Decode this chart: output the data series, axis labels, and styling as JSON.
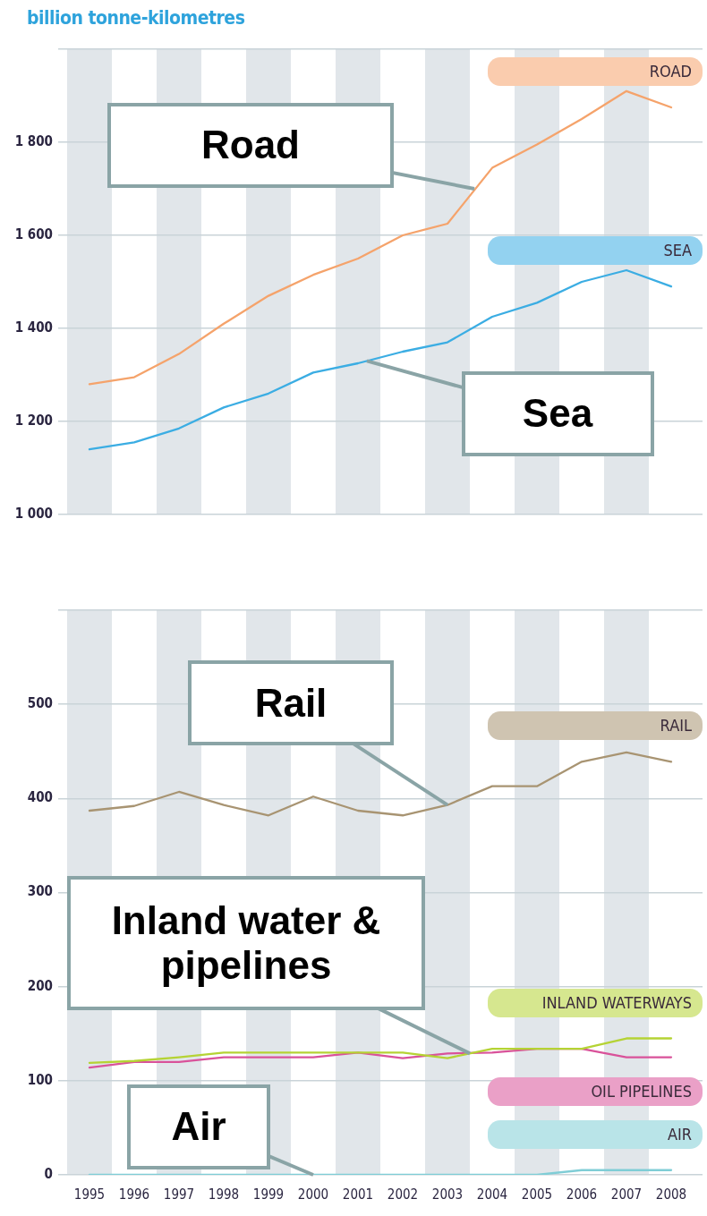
{
  "chart_data": [
    {
      "type": "line",
      "ylabel": "billion tonne-kilometres",
      "x": [
        1995,
        1996,
        1997,
        1998,
        1999,
        2000,
        2001,
        2002,
        2003,
        2004,
        2005,
        2006,
        2007,
        2008
      ],
      "series": [
        {
          "name": "ROAD",
          "color": "#f5a36b",
          "values": [
            1280,
            1295,
            1345,
            1410,
            1470,
            1515,
            1550,
            1600,
            1625,
            1745,
            1795,
            1850,
            1910,
            1875
          ]
        },
        {
          "name": "SEA",
          "color": "#3bade3",
          "values": [
            1140,
            1155,
            1185,
            1230,
            1260,
            1305,
            1325,
            1350,
            1370,
            1425,
            1455,
            1500,
            1525,
            1490
          ]
        }
      ],
      "xlim": [
        1994.3,
        2008.7
      ],
      "xticks": [
        1995,
        1996,
        1997,
        1998,
        1999,
        2000,
        2001,
        2002,
        2003,
        2004,
        2005,
        2006,
        2007,
        2008
      ],
      "ylim": [
        1000,
        2000
      ],
      "yticks": [
        {
          "value": 1000,
          "label": "1 000"
        },
        {
          "value": 1200,
          "label": "1 200"
        },
        {
          "value": 1400,
          "label": "1 400"
        },
        {
          "value": 1600,
          "label": "1 600"
        },
        {
          "value": 1800,
          "label": "1 800"
        },
        {
          "value": 2000,
          "label": null
        }
      ],
      "tick_labels": "y",
      "grid": "y",
      "bands": [
        {
          "axis": "x",
          "from": 1994.5,
          "to": 1995.5,
          "color": "#e1e6ea"
        },
        {
          "axis": "x",
          "from": 1996.5,
          "to": 1997.5,
          "color": "#e1e6ea"
        },
        {
          "axis": "x",
          "from": 1998.5,
          "to": 1999.5,
          "color": "#e1e6ea"
        },
        {
          "axis": "x",
          "from": 2000.5,
          "to": 2001.5,
          "color": "#e1e6ea"
        },
        {
          "axis": "x",
          "from": 2002.5,
          "to": 2003.5,
          "color": "#e1e6ea"
        },
        {
          "axis": "x",
          "from": 2004.5,
          "to": 2005.5,
          "color": "#e1e6ea"
        },
        {
          "axis": "x",
          "from": 2006.5,
          "to": 2007.5,
          "color": "#e1e6ea"
        }
      ],
      "annotations": [
        {
          "text": "Road",
          "x": 2003.6,
          "y": 1700
        },
        {
          "text": "Sea",
          "x": 2001.2,
          "y": 1330
        }
      ]
    },
    {
      "type": "line",
      "x": [
        1995,
        1996,
        1997,
        1998,
        1999,
        2000,
        2001,
        2002,
        2003,
        2004,
        2005,
        2006,
        2007,
        2008
      ],
      "series": [
        {
          "name": "RAIL",
          "color": "#a89472",
          "values": [
            387,
            392,
            407,
            393,
            382,
            402,
            387,
            382,
            393,
            413,
            413,
            439,
            449,
            439
          ]
        },
        {
          "name": "INLAND WATERWAYS",
          "color": "#b5d334",
          "values": [
            119,
            121,
            125,
            130,
            130,
            130,
            130,
            130,
            124,
            134,
            134,
            134,
            145,
            145
          ]
        },
        {
          "name": "OIL PIPELINES",
          "color": "#d9529a",
          "values": [
            114,
            120,
            120,
            125,
            125,
            125,
            130,
            124,
            129,
            130,
            134,
            134,
            125,
            125
          ]
        },
        {
          "name": "AIR",
          "color": "#7fcdd6",
          "values": [
            0,
            0,
            0,
            0,
            0,
            0,
            0,
            0,
            0,
            0,
            0,
            5,
            5,
            5
          ]
        }
      ],
      "xlim": [
        1994.3,
        2008.7
      ],
      "xticks": [
        1995,
        1996,
        1997,
        1998,
        1999,
        2000,
        2001,
        2002,
        2003,
        2004,
        2005,
        2006,
        2007,
        2008
      ],
      "ylim": [
        0,
        600
      ],
      "yticks": [
        0,
        100,
        200,
        300,
        400,
        500,
        {
          "value": 600,
          "label": null
        }
      ],
      "grid": "y",
      "bands": [
        {
          "axis": "x",
          "from": 1994.5,
          "to": 1995.5,
          "color": "#e1e6ea"
        },
        {
          "axis": "x",
          "from": 1996.5,
          "to": 1997.5,
          "color": "#e1e6ea"
        },
        {
          "axis": "x",
          "from": 1998.5,
          "to": 1999.5,
          "color": "#e1e6ea"
        },
        {
          "axis": "x",
          "from": 2000.5,
          "to": 2001.5,
          "color": "#e1e6ea"
        },
        {
          "axis": "x",
          "from": 2002.5,
          "to": 2003.5,
          "color": "#e1e6ea"
        },
        {
          "axis": "x",
          "from": 2004.5,
          "to": 2005.5,
          "color": "#e1e6ea"
        },
        {
          "axis": "x",
          "from": 2006.5,
          "to": 2007.5,
          "color": "#e1e6ea"
        }
      ],
      "annotations": [
        {
          "text": "Rail",
          "x": 2003,
          "y": 393
        },
        {
          "text": "Inland water & pipelines",
          "x": 2003.5,
          "y": 129
        },
        {
          "text": "Air",
          "x": 2000,
          "y": 0
        }
      ]
    }
  ]
}
